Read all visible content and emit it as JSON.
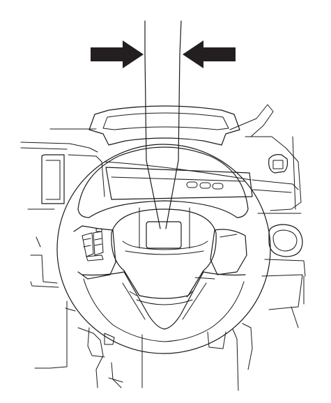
{
  "diagram": {
    "colors": {
      "line": "#1a1a1a",
      "arrow": "#231f20",
      "background": "#ffffff"
    },
    "icons": [
      "arrow-right-icon",
      "arrow-left-icon"
    ]
  }
}
